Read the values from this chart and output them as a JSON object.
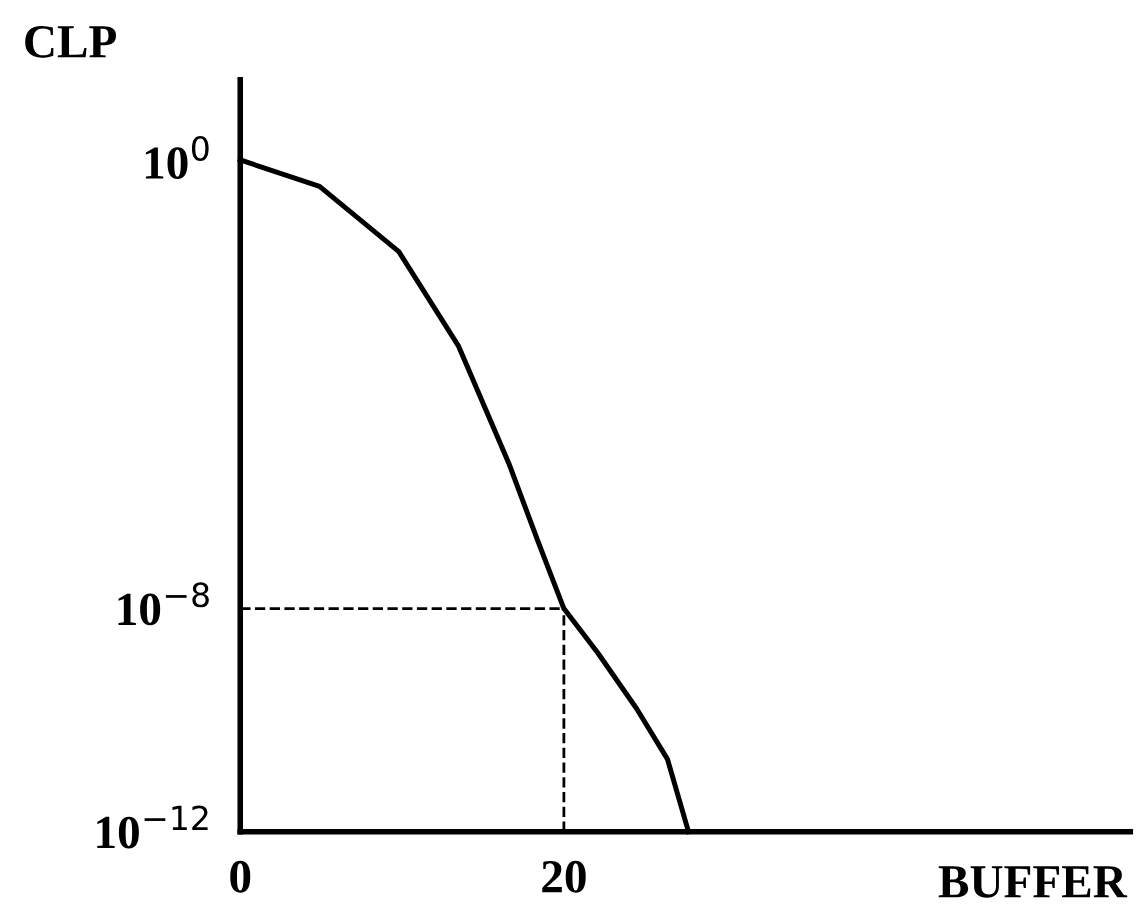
{
  "chart_data": {
    "type": "line",
    "xlabel": "BUFFER",
    "ylabel": "CLP",
    "log": "y",
    "x": [
      0,
      4.9,
      9.8,
      13.5,
      16.6,
      18.4,
      20,
      22.1,
      24.5,
      26.4,
      27.7
    ],
    "series": [
      {
        "color": "#000000",
        "values": [
          1.1,
          0.37,
          0.025,
          0.0005,
          4e-06,
          1.6e-07,
          1e-08,
          1.6e-09,
          1.6e-10,
          2e-11,
          1e-12
        ]
      }
    ],
    "xlim": [
      0,
      55
    ],
    "ylim": [
      1e-12,
      30
    ],
    "xticks": [
      0,
      20
    ],
    "yticks": [
      {
        "value": 1,
        "label": "10$^{0}$"
      },
      {
        "value": 1e-08,
        "label": "10$^{−8}$"
      },
      {
        "value": 1e-12,
        "label": "10$^{−12}$"
      }
    ],
    "ref_lines": [
      {
        "axis": "y",
        "value": 1e-08,
        "line_style": "dashed",
        "color": "#000000"
      },
      {
        "axis": "x",
        "value": 20,
        "line_style": "dashed",
        "color": "#000000"
      }
    ],
    "grid": false,
    "legend": false,
    "marker": "none",
    "line_style": "solid"
  }
}
